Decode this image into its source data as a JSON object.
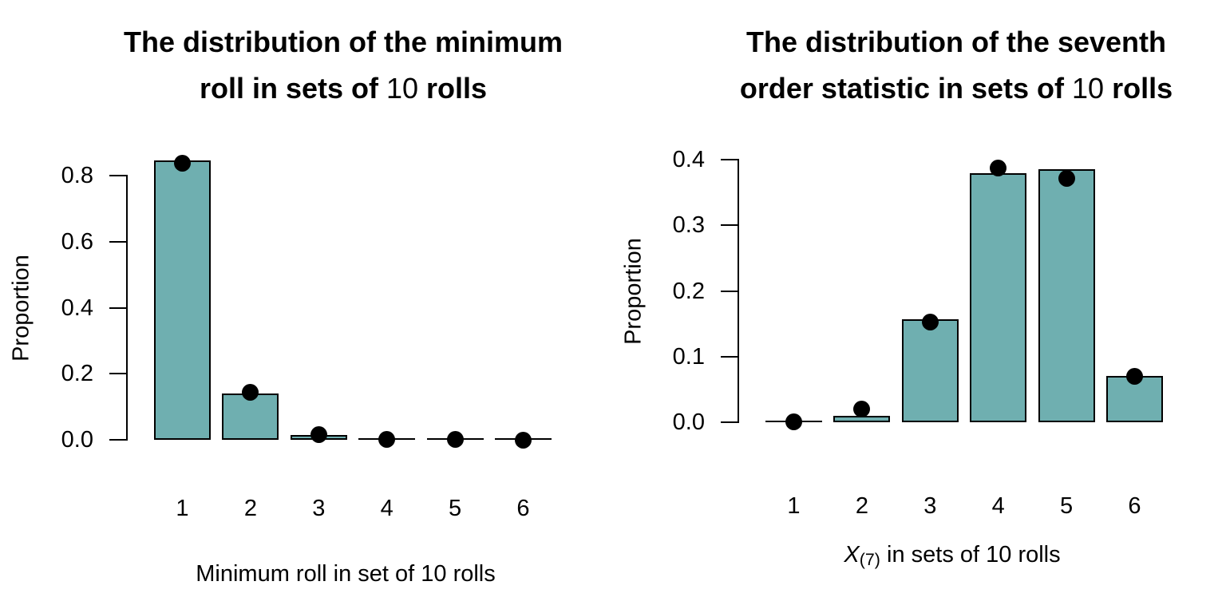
{
  "page": {
    "background": "#ffffff"
  },
  "colors": {
    "bar_fill": "#6FAFB0",
    "bar_border": "#000000",
    "dot": "#000000",
    "axis": "#000000",
    "text": "#000000"
  },
  "chart_data": [
    {
      "id": "left",
      "type": "bar",
      "title": "The distribution of the minimum roll in sets of 10 rolls",
      "title_lines": [
        [
          {
            "text": "The distribution of the minimum",
            "bold": true
          }
        ],
        [
          {
            "text": "roll in sets of ",
            "bold": true
          },
          {
            "text": "10",
            "bold": false
          },
          {
            "text": " rolls",
            "bold": true
          }
        ]
      ],
      "ylabel": "Proportion",
      "xlabel": "Minimum roll in set of 10 rolls",
      "xlabel_segments": [
        {
          "text": "Minimum roll in set of 10 rolls",
          "style": "normal"
        }
      ],
      "categories": [
        "1",
        "2",
        "3",
        "4",
        "5",
        "6"
      ],
      "series": [
        {
          "name": "simulated proportion (bars)",
          "type": "bar",
          "values": [
            0.847,
            0.139,
            0.0155,
            0.001,
            0.0002,
            2e-05
          ]
        },
        {
          "name": "theoretical probability (dots)",
          "type": "point",
          "values": [
            0.8385,
            0.1442,
            0.0164,
            0.00096,
            1.68e-05,
            0.0
          ]
        }
      ],
      "yticks": [
        0.0,
        0.2,
        0.4,
        0.6,
        0.8
      ],
      "ytick_labels": [
        "0.0",
        "0.2",
        "0.4",
        "0.6",
        "0.8"
      ],
      "ylim": [
        0,
        0.8
      ],
      "grid": false,
      "legend": false
    },
    {
      "id": "right",
      "type": "bar",
      "title": "The distribution of the seventh order statistic in sets of 10 rolls",
      "title_lines": [
        [
          {
            "text": "The distribution of the seventh",
            "bold": true
          }
        ],
        [
          {
            "text": "order statistic in sets of ",
            "bold": true
          },
          {
            "text": "10",
            "bold": false
          },
          {
            "text": " rolls",
            "bold": true
          }
        ]
      ],
      "ylabel": "Proportion",
      "xlabel": "X(7) in sets of 10 rolls",
      "xlabel_segments": [
        {
          "text": "X",
          "style": "italic"
        },
        {
          "text": "(7)",
          "style": "sub"
        },
        {
          "text": " in sets of 10 rolls",
          "style": "normal"
        }
      ],
      "categories": [
        "1",
        "2",
        "3",
        "4",
        "5",
        "6"
      ],
      "series": [
        {
          "name": "simulated proportion (bars)",
          "type": "bar",
          "values": [
            0.0005,
            0.01,
            0.157,
            0.379,
            0.385,
            0.071
          ]
        },
        {
          "name": "theoretical probability (dots)",
          "type": "point",
          "values": [
            0.00027,
            0.0197,
            0.1522,
            0.3874,
            0.3709,
            0.0698
          ]
        }
      ],
      "yticks": [
        0.0,
        0.1,
        0.2,
        0.3,
        0.4
      ],
      "ytick_labels": [
        "0.0",
        "0.1",
        "0.2",
        "0.3",
        "0.4"
      ],
      "ylim": [
        0,
        0.4
      ],
      "grid": false,
      "legend": false
    }
  ]
}
